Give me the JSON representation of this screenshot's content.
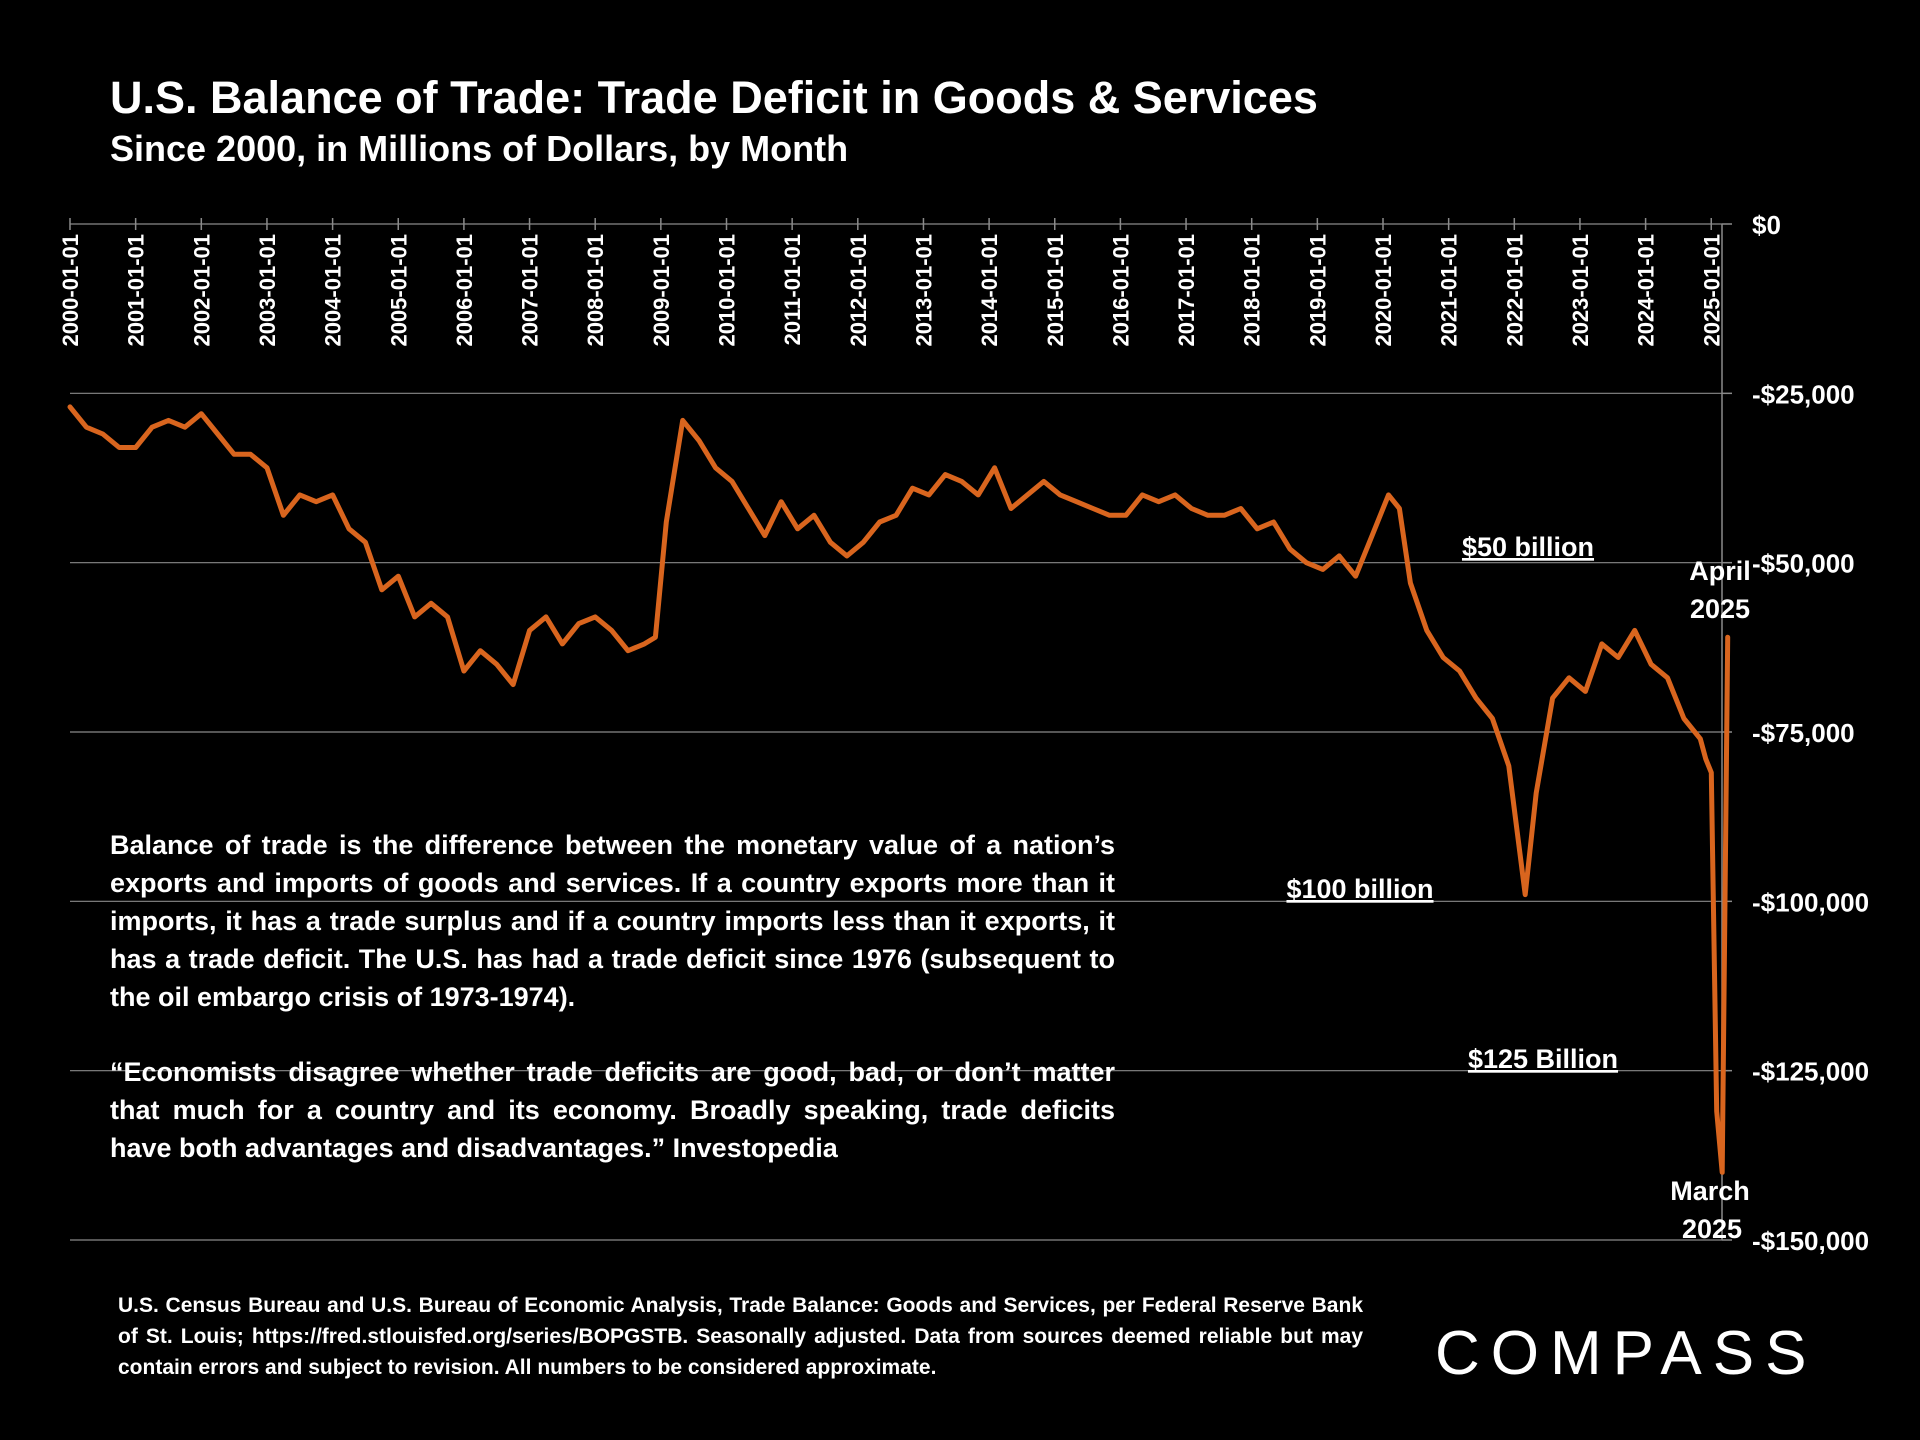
{
  "title": "U.S. Balance of Trade:  Trade Deficit in Goods & Services",
  "subtitle": "Since 2000, in Millions of Dollars, by Month",
  "note_1": "Balance of trade is the difference between the monetary value of a nation’s exports and imports of goods and services. If a country exports more than it imports, it has a trade surplus and if a country imports less than it exports, it has a trade deficit. The U.S. has had a trade deficit since 1976 (subsequent to the oil embargo crisis of 1973-1974).",
  "note_2": "“Economists disagree whether trade deficits are good, bad, or don’t matter that much for a country and its economy. Broadly speaking, trade deficits have both advantages and disadvantages.” Investopedia",
  "source": "U.S. Census Bureau and U.S. Bureau of Economic Analysis, Trade Balance: Goods and Services, per Federal Reserve Bank of St. Louis; https://fred.stlouisfed.org/series/BOPGSTB. Seasonally adjusted. Data from sources deemed reliable but may contain errors and subject to revision. All numbers to be considered approximate.",
  "logo_text": "COMPASS",
  "chart_data": {
    "type": "line",
    "title": "U.S. Balance of Trade:  Trade Deficit in Goods & Services",
    "subtitle": "Since 2000, in Millions of Dollars, by Month",
    "line_color": "#d9651e",
    "grid": true,
    "ylim": [
      -150000,
      0
    ],
    "y_ticks": [
      0,
      -25000,
      -50000,
      -75000,
      -100000,
      -125000,
      -150000
    ],
    "y_tick_labels": [
      "$0",
      "-$25,000",
      "-$50,000",
      "-$75,000",
      "-$100,000",
      "-$125,000",
      "-$150,000"
    ],
    "x_tick_labels": [
      "2000-01-01",
      "2001-01-01",
      "2002-01-01",
      "2003-01-01",
      "2004-01-01",
      "2005-01-01",
      "2006-01-01",
      "2007-01-01",
      "2008-01-01",
      "2009-01-01",
      "2010-01-01",
      "2011-01-01",
      "2012-01-01",
      "2013-01-01",
      "2014-01-01",
      "2015-01-01",
      "2016-01-01",
      "2017-01-01",
      "2018-01-01",
      "2019-01-01",
      "2020-01-01",
      "2021-01-01",
      "2022-01-01",
      "2023-01-01",
      "2024-01-01",
      "2025-01-01"
    ],
    "series": [
      {
        "x": [
          "2000-01",
          "2000-04",
          "2000-07",
          "2000-10",
          "2001-01",
          "2001-04",
          "2001-07",
          "2001-10",
          "2002-01",
          "2002-04",
          "2002-07",
          "2002-10",
          "2003-01",
          "2003-04",
          "2003-07",
          "2003-10",
          "2004-01",
          "2004-04",
          "2004-07",
          "2004-10",
          "2005-01",
          "2005-04",
          "2005-07",
          "2005-10",
          "2006-01",
          "2006-04",
          "2006-07",
          "2006-10",
          "2007-01",
          "2007-04",
          "2007-07",
          "2007-10",
          "2008-01",
          "2008-04",
          "2008-07",
          "2008-10",
          "2008-12",
          "2009-02",
          "2009-05",
          "2009-08",
          "2009-11",
          "2010-02",
          "2010-05",
          "2010-08",
          "2010-11",
          "2011-02",
          "2011-05",
          "2011-08",
          "2011-11",
          "2012-02",
          "2012-05",
          "2012-08",
          "2012-11",
          "2013-02",
          "2013-05",
          "2013-08",
          "2013-11",
          "2014-02",
          "2014-05",
          "2014-08",
          "2014-11",
          "2015-02",
          "2015-05",
          "2015-08",
          "2015-11",
          "2016-02",
          "2016-05",
          "2016-08",
          "2016-11",
          "2017-02",
          "2017-05",
          "2017-08",
          "2017-11",
          "2018-02",
          "2018-05",
          "2018-08",
          "2018-11",
          "2019-02",
          "2019-05",
          "2019-08",
          "2019-11",
          "2020-02",
          "2020-04",
          "2020-06",
          "2020-09",
          "2020-12",
          "2021-03",
          "2021-06",
          "2021-09",
          "2021-12",
          "2022-03",
          "2022-05",
          "2022-08",
          "2022-11",
          "2023-02",
          "2023-05",
          "2023-08",
          "2023-11",
          "2024-02",
          "2024-05",
          "2024-08",
          "2024-11",
          "2024-12",
          "2025-01",
          "2025-02",
          "2025-03",
          "2025-04"
        ],
        "values": [
          -27000,
          -30000,
          -31000,
          -33000,
          -33000,
          -30000,
          -29000,
          -30000,
          -28000,
          -31000,
          -34000,
          -34000,
          -36000,
          -43000,
          -40000,
          -41000,
          -40000,
          -45000,
          -47000,
          -54000,
          -52000,
          -58000,
          -56000,
          -58000,
          -66000,
          -63000,
          -65000,
          -68000,
          -60000,
          -58000,
          -62000,
          -59000,
          -58000,
          -60000,
          -63000,
          -62000,
          -61000,
          -44000,
          -29000,
          -32000,
          -36000,
          -38000,
          -42000,
          -46000,
          -41000,
          -45000,
          -43000,
          -47000,
          -49000,
          -47000,
          -44000,
          -43000,
          -39000,
          -40000,
          -37000,
          -38000,
          -40000,
          -36000,
          -42000,
          -40000,
          -38000,
          -40000,
          -41000,
          -42000,
          -43000,
          -43000,
          -40000,
          -41000,
          -40000,
          -42000,
          -43000,
          -43000,
          -42000,
          -45000,
          -44000,
          -48000,
          -50000,
          -51000,
          -49000,
          -52000,
          -46000,
          -40000,
          -42000,
          -53000,
          -60000,
          -64000,
          -66000,
          -70000,
          -73000,
          -80000,
          -99000,
          -84000,
          -70000,
          -67000,
          -69000,
          -62000,
          -64000,
          -60000,
          -65000,
          -67000,
          -73000,
          -76000,
          -79000,
          -81000,
          -131000,
          -140000,
          -61000
        ]
      }
    ],
    "annotations": [
      "$50 billion",
      "$100 billion",
      "$125 Billion",
      "April 2025",
      "March 2025"
    ]
  }
}
